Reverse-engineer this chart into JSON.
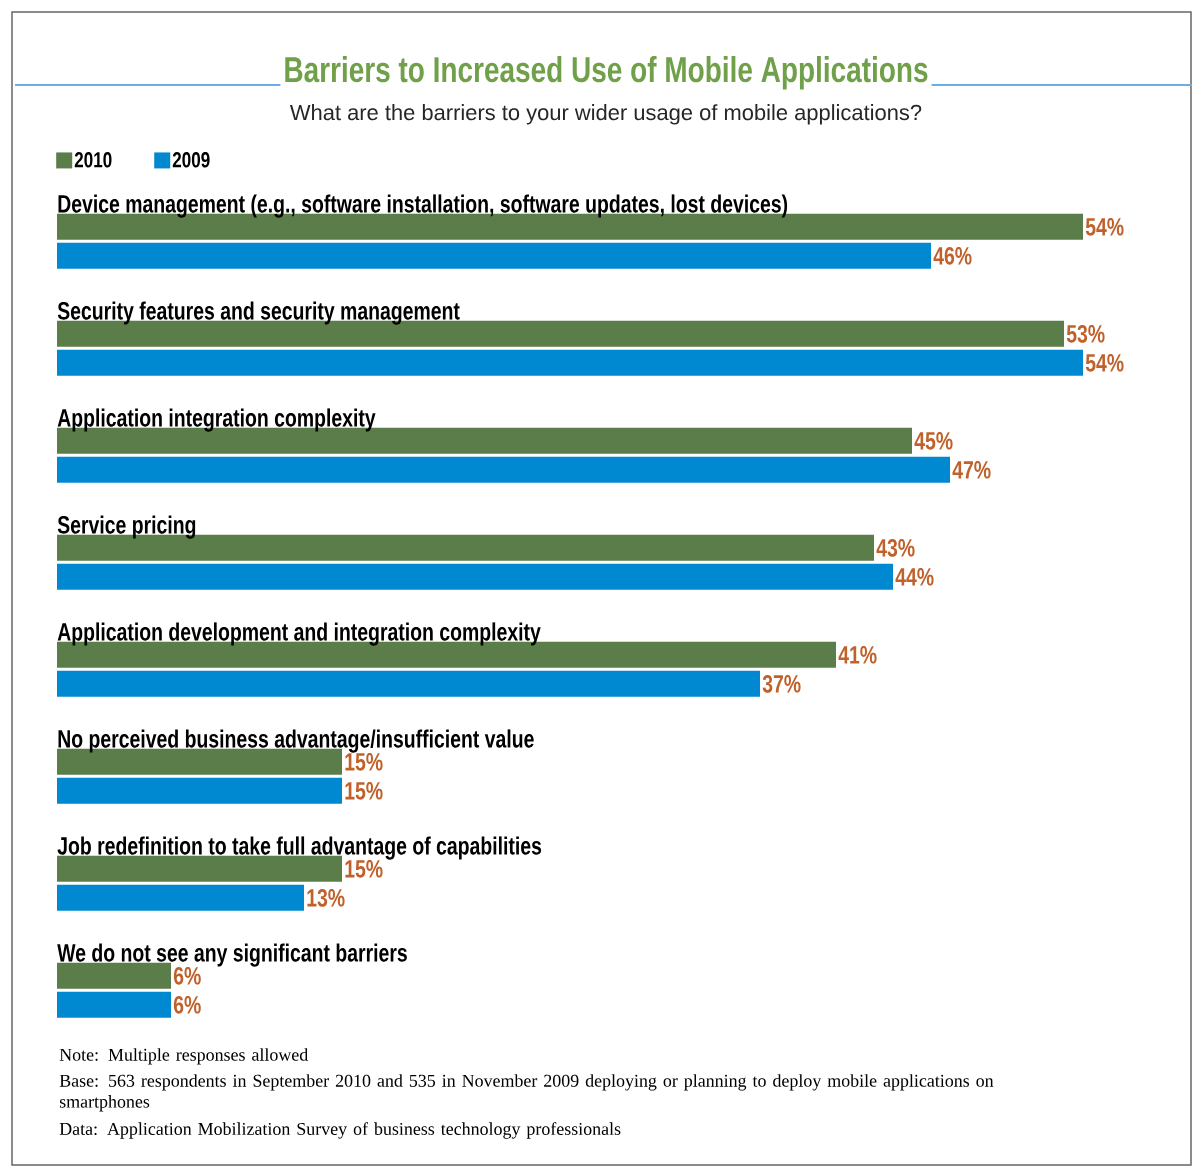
{
  "chart_data": {
    "type": "bar",
    "orientation": "horizontal",
    "title": "Barriers to Increased Use of Mobile Applications",
    "subtitle": "What are the barriers to your wider usage of mobile applications?",
    "categories": [
      "Device management (e.g., software installation, software updates, lost devices)",
      "Security features and security management",
      "Application integration complexity",
      "Service pricing",
      "Application development and integration complexity",
      "No perceived business advantage/insufficient value",
      "Job redefinition to take full advantage of capabilities",
      "We do not see any significant barriers"
    ],
    "series": [
      {
        "name": "2010",
        "color": "#5a7d4a",
        "values": [
          54,
          53,
          45,
          43,
          41,
          15,
          15,
          6
        ],
        "value_labels": [
          "54%",
          "53%",
          "45%",
          "43%",
          "41%",
          "15%",
          "15%",
          "6%"
        ]
      },
      {
        "name": "2009",
        "color": "#0088d1",
        "values": [
          46,
          54,
          47,
          44,
          37,
          15,
          13,
          6
        ],
        "value_labels": [
          "46%",
          "54%",
          "47%",
          "44%",
          "37%",
          "15%",
          "13%",
          "6%"
        ]
      }
    ],
    "legend": "top left",
    "annotations": [
      "Note: Multiple responses allowed",
      "Base: 563 respondents in September 2010 and 535 in November 2009 deploying or planning to deploy mobile applications on smartphones",
      "Data: Application Mobilization Survey of business technology professionals"
    ]
  }
}
